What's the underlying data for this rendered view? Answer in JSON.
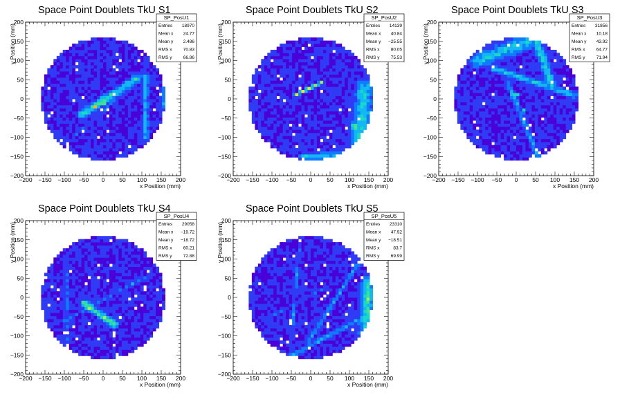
{
  "colors": {
    "background": "#ffffff",
    "frame": "#000000",
    "palette": [
      "#4a00d8",
      "#2f3bf5",
      "#0f7cff",
      "#12b8f2",
      "#19d9c5",
      "#3fe38f",
      "#9ef04a",
      "#e6ee1f",
      "#ffb31a",
      "#ff3a12"
    ]
  },
  "chart_data": [
    {
      "type": "heatmap",
      "name": "SP_PosU1",
      "title": "Space Point Doublets TkU S1",
      "xlabel": "x Position (mm)",
      "ylabel": "y Position (mm)",
      "xlim": [
        -200,
        200
      ],
      "ylim": [
        -200,
        200
      ],
      "xticks": [
        "−200",
        "−150",
        "−100",
        "−50",
        "0",
        "50",
        "100",
        "150",
        "200"
      ],
      "yticks": [
        "200",
        "150",
        "100",
        "50",
        "0",
        "−50",
        "−100",
        "−150",
        "−200"
      ],
      "acceptance_radius_mm": 160,
      "stats": [
        [
          "Entries",
          "18970"
        ],
        [
          "Mean x",
          "24.77"
        ],
        [
          "Mean y",
          "2.486"
        ],
        [
          "RMS x",
          "70.83"
        ],
        [
          "RMS y",
          "66.86"
        ]
      ],
      "features": [
        {
          "kind": "band",
          "from": [
            -55,
            -40
          ],
          "to": [
            90,
            55
          ],
          "width": 18,
          "level": 0.42
        },
        {
          "kind": "band",
          "from": [
            -30,
            -25
          ],
          "to": [
            30,
            15
          ],
          "width": 12,
          "level": 0.55
        },
        {
          "kind": "blob",
          "at": [
            0,
            -10
          ],
          "radius": 12,
          "level": 0.95
        },
        {
          "kind": "blob",
          "at": [
            -20,
            -20
          ],
          "radius": 10,
          "level": 0.7
        },
        {
          "kind": "band",
          "from": [
            110,
            -100
          ],
          "to": [
            110,
            60
          ],
          "width": 12,
          "level": 0.35
        },
        {
          "kind": "band",
          "from": [
            160,
            -20
          ],
          "to": [
            160,
            40
          ],
          "width": 8,
          "level": 0.45
        },
        {
          "kind": "band",
          "from": [
            -100,
            -120
          ],
          "to": [
            100,
            60
          ],
          "width": 5,
          "level": 0.2
        }
      ]
    },
    {
      "type": "heatmap",
      "name": "SP_PosU2",
      "title": "Space Point Doublets TkU S2",
      "xlabel": "x Position (mm)",
      "ylabel": "y Position (mm)",
      "xlim": [
        -200,
        200
      ],
      "ylim": [
        -200,
        200
      ],
      "xticks": [
        "−200",
        "−150",
        "−100",
        "−50",
        "0",
        "50",
        "100",
        "150",
        "200"
      ],
      "yticks": [
        "200",
        "150",
        "100",
        "50",
        "0",
        "−50",
        "−100",
        "−150",
        "−200"
      ],
      "acceptance_radius_mm": 160,
      "stats": [
        [
          "Entries",
          "14139"
        ],
        [
          "Mean x",
          "40.84"
        ],
        [
          "Mean y",
          "−25.55"
        ],
        [
          "RMS x",
          "80.05"
        ],
        [
          "RMS y",
          "75.53"
        ]
      ],
      "features": [
        {
          "kind": "band",
          "from": [
            -40,
            10
          ],
          "to": [
            30,
            45
          ],
          "width": 7,
          "level": 0.6
        },
        {
          "kind": "band",
          "from": [
            125,
            -120
          ],
          "to": [
            140,
            30
          ],
          "width": 35,
          "level": 0.4
        },
        {
          "kind": "blob",
          "at": [
            115,
            -70
          ],
          "radius": 18,
          "level": 0.6
        },
        {
          "kind": "band",
          "from": [
            -20,
            -150
          ],
          "to": [
            140,
            -140
          ],
          "width": 15,
          "level": 0.35
        }
      ]
    },
    {
      "type": "heatmap",
      "name": "SP_PosU3",
      "title": "Space Point Doublets TkU S3",
      "xlabel": "x Position (mm)",
      "ylabel": "y Position (mm)",
      "xlim": [
        -200,
        200
      ],
      "ylim": [
        -200,
        200
      ],
      "xticks": [
        "−200",
        "−150",
        "−100",
        "−50",
        "0",
        "50",
        "100",
        "150",
        "200"
      ],
      "yticks": [
        "200",
        "150",
        "100",
        "50",
        "0",
        "−50",
        "−100",
        "−150",
        "−200"
      ],
      "acceptance_radius_mm": 160,
      "stats": [
        [
          "Entries",
          "31856"
        ],
        [
          "Mean x",
          "10.18"
        ],
        [
          "Mean y",
          "43.92"
        ],
        [
          "RMS x",
          "64.77"
        ],
        [
          "RMS y",
          "71.94"
        ]
      ],
      "features": [
        {
          "kind": "band",
          "from": [
            -100,
            100
          ],
          "to": [
            30,
            150
          ],
          "width": 30,
          "level": 0.4
        },
        {
          "kind": "band",
          "from": [
            -60,
            80
          ],
          "to": [
            150,
            10
          ],
          "width": 14,
          "level": 0.35
        },
        {
          "kind": "band",
          "from": [
            50,
            160
          ],
          "to": [
            90,
            40
          ],
          "width": 20,
          "level": 0.4
        },
        {
          "kind": "blob",
          "at": [
            0,
            10
          ],
          "radius": 8,
          "level": 0.98
        },
        {
          "kind": "blob",
          "at": [
            20,
            -30
          ],
          "radius": 10,
          "level": 0.6
        },
        {
          "kind": "band",
          "from": [
            -20,
            40
          ],
          "to": [
            60,
            -160
          ],
          "width": 12,
          "level": 0.3
        }
      ]
    },
    {
      "type": "heatmap",
      "name": "SP_PosU4",
      "title": "Space Point Doublets TkU S4",
      "xlabel": "x Position (mm)",
      "ylabel": "y Position (mm)",
      "xlim": [
        -200,
        200
      ],
      "ylim": [
        -200,
        200
      ],
      "xticks": [
        "−200",
        "−150",
        "−100",
        "−50",
        "0",
        "50",
        "100",
        "150",
        "200"
      ],
      "yticks": [
        "200",
        "150",
        "100",
        "50",
        "0",
        "−50",
        "−100",
        "−150",
        "−200"
      ],
      "acceptance_radius_mm": 160,
      "stats": [
        [
          "Entries",
          "29058"
        ],
        [
          "Mean x",
          "−19.72"
        ],
        [
          "Mean y",
          "−18.72"
        ],
        [
          "RMS x",
          "60.21"
        ],
        [
          "RMS y",
          "72.88"
        ]
      ],
      "features": [
        {
          "kind": "band",
          "from": [
            -50,
            -15
          ],
          "to": [
            30,
            -70
          ],
          "width": 14,
          "level": 0.55
        },
        {
          "kind": "blob",
          "at": [
            -35,
            -25
          ],
          "radius": 10,
          "level": 0.97
        },
        {
          "kind": "blob",
          "at": [
            -10,
            -45
          ],
          "radius": 9,
          "level": 0.7
        },
        {
          "kind": "band",
          "from": [
            -100,
            -60
          ],
          "to": [
            120,
            60
          ],
          "width": 5,
          "level": 0.25
        },
        {
          "kind": "band",
          "from": [
            -95,
            -150
          ],
          "to": [
            -95,
            100
          ],
          "width": 8,
          "level": 0.25
        }
      ]
    },
    {
      "type": "heatmap",
      "name": "SP_PosU5",
      "title": "Space Point Doublets TkU S5",
      "xlabel": "x Position (mm)",
      "ylabel": "y Position (mm)",
      "xlim": [
        -200,
        200
      ],
      "ylim": [
        -200,
        200
      ],
      "xticks": [
        "−200",
        "−150",
        "−100",
        "−50",
        "0",
        "50",
        "100",
        "150",
        "200"
      ],
      "yticks": [
        "200",
        "150",
        "100",
        "50",
        "0",
        "−50",
        "−100",
        "−150",
        "−200"
      ],
      "acceptance_radius_mm": 160,
      "stats": [
        [
          "Entries",
          "23310"
        ],
        [
          "Mean x",
          "47.92"
        ],
        [
          "Mean y",
          "−18.51"
        ],
        [
          "RMS x",
          "83.7"
        ],
        [
          "RMS y",
          "69.99"
        ]
      ],
      "features": [
        {
          "kind": "band",
          "from": [
            140,
            -110
          ],
          "to": [
            150,
            40
          ],
          "width": 28,
          "level": 0.45
        },
        {
          "kind": "blob",
          "at": [
            150,
            0
          ],
          "radius": 14,
          "level": 0.85
        },
        {
          "kind": "band",
          "from": [
            -50,
            -150
          ],
          "to": [
            140,
            -50
          ],
          "width": 10,
          "level": 0.3
        },
        {
          "kind": "band",
          "from": [
            -10,
            -120
          ],
          "to": [
            130,
            100
          ],
          "width": 8,
          "level": 0.3
        },
        {
          "kind": "band",
          "from": [
            -50,
            -120
          ],
          "to": [
            -30,
            130
          ],
          "width": 6,
          "level": 0.25
        },
        {
          "kind": "band",
          "from": [
            -120,
            -60
          ],
          "to": [
            100,
            60
          ],
          "width": 5,
          "level": 0.2
        }
      ]
    }
  ]
}
